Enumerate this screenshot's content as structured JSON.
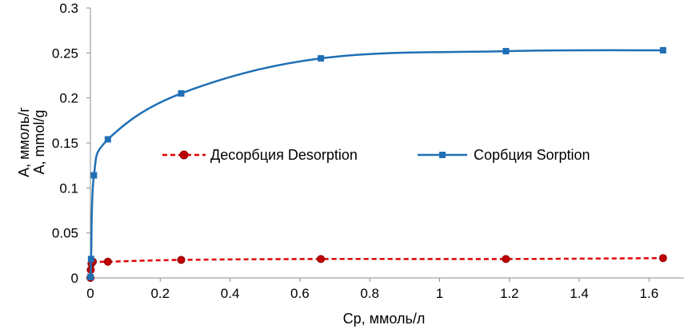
{
  "chart_data": {
    "type": "line",
    "xlabel": "Ср, ммоль/л",
    "ylabel_lines": [
      "А, ммоль/г",
      "А, mmol/g"
    ],
    "xlim": [
      0,
      1.7
    ],
    "ylim": [
      0,
      0.3
    ],
    "x_ticks": [
      "0",
      "0.2",
      "0.4",
      "0.6",
      "0.8",
      "1",
      "1.2",
      "1.4",
      "1.6"
    ],
    "y_ticks": [
      "0",
      "0.05",
      "0.1",
      "0.15",
      "0.2",
      "0.25",
      "0.3"
    ],
    "grid": false,
    "legend_position": "center",
    "series": [
      {
        "name": "Десорбция Desorption",
        "color": "#e00000",
        "marker": "circle",
        "line_style": "dashed",
        "points": [
          {
            "x": 0.0,
            "y": 0.0
          },
          {
            "x": 0.001,
            "y": 0.009
          },
          {
            "x": 0.003,
            "y": 0.016
          },
          {
            "x": 0.007,
            "y": 0.018
          },
          {
            "x": 0.05,
            "y": 0.018
          },
          {
            "x": 0.26,
            "y": 0.02
          },
          {
            "x": 0.66,
            "y": 0.021
          },
          {
            "x": 1.19,
            "y": 0.021
          },
          {
            "x": 1.64,
            "y": 0.022
          }
        ]
      },
      {
        "name": "Сорбция Sorption",
        "color": "#1f6fb5",
        "marker": "square",
        "line_style": "solid",
        "points": [
          {
            "x": 0.0,
            "y": 0.001
          },
          {
            "x": 0.002,
            "y": 0.021
          },
          {
            "x": 0.01,
            "y": 0.114
          },
          {
            "x": 0.05,
            "y": 0.154
          },
          {
            "x": 0.26,
            "y": 0.205
          },
          {
            "x": 0.66,
            "y": 0.244
          },
          {
            "x": 1.19,
            "y": 0.252
          },
          {
            "x": 1.64,
            "y": 0.253
          }
        ]
      }
    ]
  }
}
